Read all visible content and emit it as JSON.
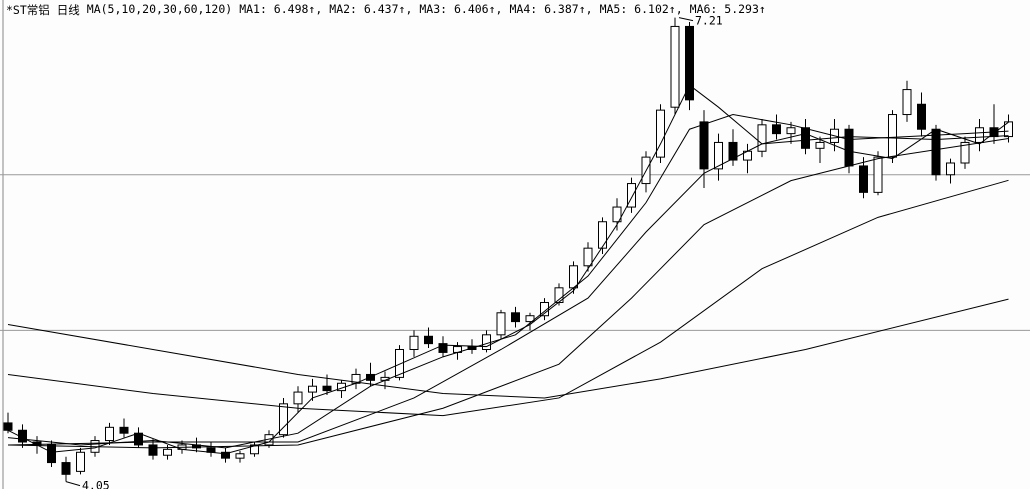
{
  "chart_data": {
    "type": "candlestick",
    "header": {
      "symbol": "*ST常铝",
      "period": "日线",
      "ma_spec": "MA(5,10,20,30,60,120)",
      "readouts": [
        "MA1: 6.498↑,",
        "MA2: 6.437↑,",
        "MA3: 6.406↑,",
        "MA4: 6.387↑,",
        "MA5: 6.102↑,",
        "MA6: 5.293↑"
      ]
    },
    "ylim": [
      4.0,
      7.33
    ],
    "grid_levels": [
      6.14,
      5.08
    ],
    "high_mark": 7.21,
    "low_mark": 4.05,
    "up_color": "#ffffff",
    "down_color": "#000000",
    "candles": [
      [
        4.45,
        4.52,
        4.38,
        4.4
      ],
      [
        4.4,
        4.44,
        4.28,
        4.32
      ],
      [
        4.32,
        4.36,
        4.24,
        4.3
      ],
      [
        4.3,
        4.33,
        4.15,
        4.18
      ],
      [
        4.18,
        4.22,
        4.05,
        4.1
      ],
      [
        4.12,
        4.28,
        4.1,
        4.25
      ],
      [
        4.25,
        4.36,
        4.22,
        4.33
      ],
      [
        4.33,
        4.45,
        4.3,
        4.42
      ],
      [
        4.42,
        4.48,
        4.35,
        4.38
      ],
      [
        4.38,
        4.42,
        4.28,
        4.3
      ],
      [
        4.3,
        4.34,
        4.2,
        4.23
      ],
      [
        4.23,
        4.3,
        4.2,
        4.27
      ],
      [
        4.27,
        4.33,
        4.24,
        4.3
      ],
      [
        4.3,
        4.35,
        4.25,
        4.28
      ],
      [
        4.28,
        4.32,
        4.22,
        4.25
      ],
      [
        4.25,
        4.28,
        4.18,
        4.21
      ],
      [
        4.21,
        4.26,
        4.18,
        4.24
      ],
      [
        4.24,
        4.32,
        4.22,
        4.3
      ],
      [
        4.3,
        4.4,
        4.28,
        4.37
      ],
      [
        4.37,
        4.62,
        4.35,
        4.58
      ],
      [
        4.58,
        4.7,
        4.52,
        4.66
      ],
      [
        4.66,
        4.75,
        4.6,
        4.7
      ],
      [
        4.7,
        4.78,
        4.64,
        4.67
      ],
      [
        4.67,
        4.74,
        4.62,
        4.72
      ],
      [
        4.72,
        4.82,
        4.68,
        4.78
      ],
      [
        4.78,
        4.86,
        4.7,
        4.74
      ],
      [
        4.74,
        4.8,
        4.68,
        4.76
      ],
      [
        4.76,
        4.98,
        4.74,
        4.95
      ],
      [
        4.95,
        5.08,
        4.9,
        5.04
      ],
      [
        5.04,
        5.1,
        4.96,
        4.99
      ],
      [
        4.99,
        5.04,
        4.9,
        4.93
      ],
      [
        4.93,
        5.0,
        4.88,
        4.97
      ],
      [
        4.97,
        5.02,
        4.92,
        4.95
      ],
      [
        4.95,
        5.08,
        4.93,
        5.05
      ],
      [
        5.05,
        5.22,
        5.02,
        5.2
      ],
      [
        5.2,
        5.24,
        5.1,
        5.14
      ],
      [
        5.14,
        5.2,
        5.08,
        5.18
      ],
      [
        5.18,
        5.3,
        5.15,
        5.27
      ],
      [
        5.27,
        5.4,
        5.25,
        5.37
      ],
      [
        5.37,
        5.55,
        5.33,
        5.52
      ],
      [
        5.52,
        5.68,
        5.48,
        5.64
      ],
      [
        5.64,
        5.85,
        5.6,
        5.82
      ],
      [
        5.82,
        5.98,
        5.76,
        5.92
      ],
      [
        5.92,
        6.12,
        5.88,
        6.08
      ],
      [
        6.08,
        6.3,
        6.02,
        6.26
      ],
      [
        6.26,
        6.62,
        6.22,
        6.58
      ],
      [
        6.6,
        7.21,
        6.55,
        7.15
      ],
      [
        7.15,
        7.18,
        6.58,
        6.65
      ],
      [
        6.5,
        6.58,
        6.05,
        6.18
      ],
      [
        6.18,
        6.42,
        6.1,
        6.36
      ],
      [
        6.36,
        6.45,
        6.2,
        6.24
      ],
      [
        6.24,
        6.35,
        6.15,
        6.3
      ],
      [
        6.3,
        6.52,
        6.26,
        6.48
      ],
      [
        6.48,
        6.55,
        6.38,
        6.42
      ],
      [
        6.42,
        6.5,
        6.35,
        6.46
      ],
      [
        6.46,
        6.52,
        6.28,
        6.32
      ],
      [
        6.32,
        6.4,
        6.22,
        6.36
      ],
      [
        6.36,
        6.52,
        6.3,
        6.45
      ],
      [
        6.45,
        6.48,
        6.15,
        6.2
      ],
      [
        6.2,
        6.26,
        5.98,
        6.02
      ],
      [
        6.02,
        6.3,
        6.0,
        6.26
      ],
      [
        6.26,
        6.58,
        6.22,
        6.55
      ],
      [
        6.55,
        6.78,
        6.5,
        6.72
      ],
      [
        6.62,
        6.7,
        6.4,
        6.45
      ],
      [
        6.45,
        6.48,
        6.1,
        6.14
      ],
      [
        6.14,
        6.25,
        6.08,
        6.22
      ],
      [
        6.22,
        6.4,
        6.18,
        6.36
      ],
      [
        6.36,
        6.52,
        6.3,
        6.46
      ],
      [
        6.46,
        6.62,
        6.35,
        6.4
      ],
      [
        6.4,
        6.55,
        6.36,
        6.5
      ]
    ],
    "series": [
      {
        "color": "#000000",
        "x": [
          0,
          3,
          6,
          9,
          12,
          15,
          18,
          21,
          24,
          27,
          30,
          33,
          36,
          39,
          42,
          45,
          47,
          49,
          52,
          55,
          58,
          61,
          64,
          67,
          69
        ],
        "values": [
          4.4,
          4.25,
          4.28,
          4.38,
          4.27,
          4.24,
          4.32,
          4.62,
          4.72,
          4.85,
          4.98,
          4.97,
          5.12,
          5.35,
          5.8,
          6.35,
          6.75,
          6.6,
          6.35,
          6.42,
          6.3,
          6.25,
          6.45,
          6.35,
          6.498
        ]
      },
      {
        "color": "#000000",
        "x": [
          0,
          5,
          10,
          15,
          20,
          25,
          30,
          35,
          40,
          44,
          47,
          50,
          54,
          58,
          62,
          66,
          69
        ],
        "values": [
          4.35,
          4.3,
          4.33,
          4.28,
          4.38,
          4.7,
          4.9,
          5.05,
          5.45,
          5.95,
          6.45,
          6.55,
          6.48,
          6.38,
          6.4,
          6.42,
          6.437
        ]
      },
      {
        "color": "#000000",
        "x": [
          0,
          10,
          20,
          28,
          34,
          40,
          44,
          48,
          52,
          58,
          64,
          69
        ],
        "values": [
          4.3,
          4.32,
          4.32,
          4.62,
          4.95,
          5.3,
          5.75,
          6.15,
          6.35,
          6.4,
          6.38,
          6.406
        ]
      },
      {
        "color": "#000000",
        "x": [
          0,
          10,
          20,
          30,
          38,
          43,
          48,
          54,
          60,
          69
        ],
        "values": [
          4.3,
          4.28,
          4.3,
          4.55,
          4.85,
          5.3,
          5.8,
          6.1,
          6.25,
          6.387
        ]
      },
      {
        "color": "#000000",
        "x": [
          0,
          10,
          20,
          30,
          38,
          45,
          52,
          60,
          69
        ],
        "values": [
          4.78,
          4.65,
          4.55,
          4.5,
          4.62,
          5.0,
          5.5,
          5.85,
          6.102
        ]
      },
      {
        "color": "#000000",
        "x": [
          0,
          10,
          20,
          30,
          37,
          45,
          55,
          69
        ],
        "values": [
          5.12,
          4.95,
          4.78,
          4.65,
          4.62,
          4.75,
          4.95,
          5.293
        ]
      }
    ]
  }
}
